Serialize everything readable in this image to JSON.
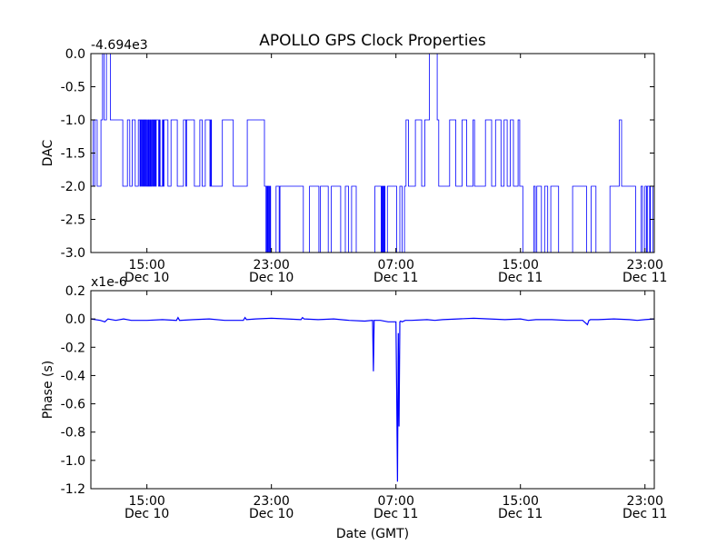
{
  "title": "APOLLO GPS Clock Properties",
  "colors": {
    "series": "#0000ff",
    "axes": "#000000",
    "background": "#ffffff"
  },
  "chart_data": [
    {
      "type": "line",
      "title": "APOLLO GPS Clock Properties",
      "ylabel": "DAC",
      "xlabel": "",
      "offset_label": "-4.694e3",
      "ylim": [
        -3.0,
        0.0
      ],
      "yticks": [
        "0.0",
        "-0.5",
        "-1.0",
        "-1.5",
        "-2.0",
        "-2.5",
        "-3.0"
      ],
      "xlim_hours": [
        11.4,
        47.6
      ],
      "xticks": [
        {
          "time": "15:00",
          "date": "Dec 10"
        },
        {
          "time": "23:00",
          "date": "Dec 10"
        },
        {
          "time": "07:00",
          "date": "Dec 11"
        },
        {
          "time": "15:00",
          "date": "Dec 11"
        },
        {
          "time": "23:00",
          "date": "Dec 11"
        }
      ],
      "series": [
        {
          "x_hours": [
            11.4,
            11.5,
            11.55,
            11.6,
            11.65,
            11.7,
            11.8,
            12.0,
            12.05,
            12.1,
            12.15,
            12.2,
            12.25,
            12.3,
            12.4,
            12.6,
            12.65,
            13.4,
            13.45,
            13.7,
            13.75,
            13.85,
            13.9,
            14.0,
            14.05,
            14.2,
            14.25,
            14.4,
            14.45,
            14.5,
            14.55,
            14.6,
            14.65,
            14.7,
            14.75,
            14.8,
            14.85,
            14.9,
            14.95,
            15.0,
            15.05,
            15.1,
            15.15,
            15.2,
            15.25,
            15.3,
            15.35,
            15.4,
            15.45,
            15.5,
            15.55,
            15.6,
            15.7,
            15.75,
            15.8,
            15.85,
            15.95,
            16.0,
            16.05,
            16.1,
            16.3,
            16.35,
            16.5,
            16.55,
            16.9,
            16.95,
            17.3,
            17.35,
            17.45,
            17.5,
            17.55,
            17.6,
            18.0,
            18.05,
            18.35,
            18.4,
            18.5,
            18.55,
            18.7,
            18.75,
            19.0,
            19.05,
            19.1,
            19.15,
            19.8,
            19.85,
            20.5,
            20.55,
            21.4,
            21.45,
            22.5,
            22.55,
            22.6,
            22.65,
            22.7,
            22.75,
            22.8,
            22.85,
            22.9,
            22.95,
            23.3,
            23.35,
            23.5,
            23.55,
            25.0,
            25.05,
            25.4,
            25.45,
            26.0,
            26.05,
            26.1,
            26.15,
            26.6,
            26.65,
            26.8,
            26.85,
            27.4,
            27.45,
            27.7,
            27.75,
            27.9,
            27.95,
            28.1,
            28.15,
            28.4,
            28.45,
            29.6,
            29.65,
            30.0,
            30.05,
            30.05,
            30.1,
            30.15,
            30.2,
            30.25,
            30.3,
            30.4,
            30.45,
            31.0,
            31.05,
            31.2,
            31.25,
            31.35,
            31.4,
            31.5,
            31.55,
            31.6,
            31.65,
            31.75,
            31.8,
            32.2,
            32.25,
            32.6,
            32.65,
            32.8,
            32.85,
            33.1,
            33.15,
            33.6,
            33.65,
            33.7,
            33.75,
            34.4,
            34.45,
            34.8,
            34.85,
            35.2,
            35.25,
            35.5,
            35.55,
            35.9,
            35.95,
            36.0,
            36.05,
            36.7,
            36.75,
            37.1,
            37.15,
            37.35,
            37.4,
            37.7,
            37.75,
            37.9,
            37.95,
            38.1,
            38.15,
            38.3,
            38.35,
            38.5,
            38.55,
            38.8,
            38.85,
            38.9,
            38.95,
            39.1,
            39.15,
            39.8,
            39.85,
            39.9,
            39.95,
            40.0,
            40.05,
            40.3,
            40.35,
            40.5,
            40.55,
            40.7,
            40.75,
            40.9,
            40.95,
            41.4,
            41.45,
            42.3,
            42.35,
            43.2,
            43.25,
            43.5,
            43.55,
            43.8,
            43.85,
            44.7,
            44.75,
            45.3,
            45.35,
            45.45,
            45.5,
            45.9,
            45.95,
            46.35,
            46.4,
            46.7,
            46.75,
            46.8,
            46.85,
            46.95,
            47.0,
            47.1,
            47.15,
            47.3,
            47.35,
            47.5,
            47.6
          ],
          "y": [
            -1,
            -1,
            -2,
            -2,
            -1,
            -1,
            -2,
            -2,
            -1,
            -1,
            0,
            0,
            -1,
            -1,
            0,
            0,
            -1,
            -1,
            -2,
            -2,
            -1,
            -1,
            -2,
            -2,
            -1,
            -1,
            -2,
            -2,
            -1,
            -1,
            -2,
            -1,
            -2,
            -1,
            -2,
            -1,
            -2,
            -1,
            -2,
            -1,
            -2,
            -1,
            -2,
            -1,
            -2,
            -1,
            -2,
            -1,
            -2,
            -1,
            -2,
            -1,
            -1,
            -2,
            -1,
            -2,
            -2,
            -1,
            -2,
            -1,
            -1,
            -2,
            -2,
            -1,
            -1,
            -2,
            -2,
            -1,
            -1,
            -2,
            -1,
            -1,
            -1,
            -2,
            -2,
            -1,
            -1,
            -2,
            -2,
            -1,
            -1,
            -2,
            -1,
            -2,
            -2,
            -1,
            -1,
            -2,
            -2,
            -1,
            -1,
            -2,
            -2,
            -3,
            -2,
            -3,
            -2,
            -3,
            -2,
            -3,
            -2,
            -2,
            -3,
            -2,
            -2,
            -3,
            -3,
            -2,
            -2,
            -3,
            -3,
            -2,
            -2,
            -3,
            -3,
            -2,
            -2,
            -3,
            -3,
            -2,
            -2,
            -3,
            -3,
            -2,
            -2,
            -3,
            -3,
            -2,
            -2,
            -3,
            -2,
            -3,
            -2,
            -3,
            -2,
            -3,
            -3,
            -2,
            -2,
            -3,
            -3,
            -2,
            -2,
            -3,
            -3,
            -2,
            -2,
            -1,
            -1,
            -2,
            -2,
            -1,
            -1,
            -2,
            -2,
            -1,
            -1,
            0,
            0,
            -1,
            -1,
            -2,
            -2,
            -1,
            -1,
            -2,
            -2,
            -1,
            -1,
            -2,
            -2,
            -1,
            -1,
            -2,
            -2,
            -1,
            -1,
            -2,
            -2,
            -1,
            -1,
            -2,
            -2,
            -1,
            -1,
            -2,
            -2,
            -1,
            -1,
            -2,
            -2,
            -1,
            -1,
            -2,
            -2,
            -3,
            -3,
            -2,
            -2,
            -3,
            -3,
            -2,
            -2,
            -3,
            -3,
            -2,
            -2,
            -3,
            -3,
            -2,
            -2,
            -3,
            -3,
            -2,
            -2,
            -3,
            -3,
            -2,
            -2,
            -3,
            -3,
            -2,
            -2,
            -1,
            -1,
            -2,
            -2,
            -2,
            -2,
            -3,
            -3,
            -2,
            -2,
            -3,
            -3,
            -2,
            -3,
            -2,
            -3,
            -2,
            -3,
            -2
          ]
        }
      ]
    },
    {
      "type": "line",
      "ylabel": "Phase (s)",
      "xlabel": "Date (GMT)",
      "offset_label": "x1e-6",
      "ylim": [
        -1.2,
        0.2
      ],
      "yticks": [
        "0.2",
        "0.0",
        "-0.2",
        "-0.4",
        "-0.6",
        "-0.8",
        "-1.0",
        "-1.2"
      ],
      "xlim_hours": [
        11.4,
        47.6
      ],
      "xticks": [
        {
          "time": "15:00",
          "date": "Dec 10"
        },
        {
          "time": "23:00",
          "date": "Dec 10"
        },
        {
          "time": "07:00",
          "date": "Dec 11"
        },
        {
          "time": "15:00",
          "date": "Dec 11"
        },
        {
          "time": "23:00",
          "date": "Dec 11"
        }
      ],
      "series": [
        {
          "x_hours": [
            11.4,
            12.0,
            12.3,
            12.5,
            13.0,
            13.5,
            14.0,
            15.0,
            16.0,
            16.9,
            17.0,
            17.1,
            18.0,
            19.0,
            20.0,
            21.2,
            21.3,
            21.4,
            22.0,
            23.0,
            24.0,
            24.9,
            25.0,
            25.1,
            26.0,
            27.0,
            28.0,
            29.0,
            29.5,
            29.55,
            29.6,
            30.0,
            30.5,
            31.0,
            31.05,
            31.1,
            31.15,
            31.2,
            31.25,
            31.3,
            31.4,
            31.6,
            32.0,
            33.0,
            33.5,
            34.0,
            35.0,
            36.0,
            37.0,
            38.0,
            39.0,
            39.5,
            40.0,
            41.0,
            42.0,
            43.0,
            43.3,
            43.4,
            43.5,
            44.0,
            45.0,
            46.0,
            46.5,
            47.0,
            47.6
          ],
          "y": [
            0.0,
            -0.01,
            -0.02,
            0.0,
            -0.01,
            0.0,
            -0.01,
            -0.01,
            -0.005,
            -0.01,
            0.01,
            -0.01,
            -0.005,
            0.0,
            -0.01,
            -0.01,
            0.01,
            -0.005,
            0.0,
            0.005,
            0.0,
            -0.005,
            0.01,
            0.0,
            -0.005,
            0.0,
            -0.01,
            -0.015,
            -0.01,
            -0.37,
            -0.01,
            -0.01,
            -0.02,
            -0.02,
            -0.5,
            -1.15,
            -0.1,
            -0.76,
            -0.02,
            -0.015,
            -0.02,
            -0.01,
            -0.01,
            -0.005,
            -0.01,
            -0.005,
            0.0,
            0.005,
            0.0,
            -0.005,
            0.0,
            -0.01,
            -0.005,
            -0.005,
            -0.01,
            -0.01,
            -0.04,
            -0.01,
            -0.005,
            -0.005,
            0.0,
            -0.005,
            -0.01,
            -0.005,
            0.0
          ]
        }
      ]
    }
  ]
}
